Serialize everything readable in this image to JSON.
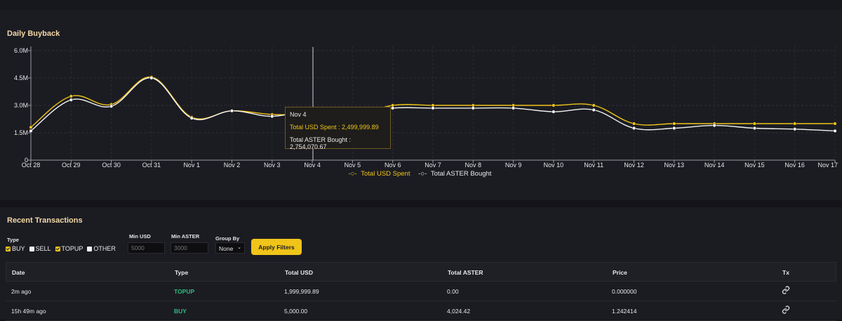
{
  "chart": {
    "title": "Daily Buyback",
    "y_ticks": [
      "0",
      "1.5M",
      "3.0M",
      "4.5M",
      "6.0M"
    ],
    "legend": {
      "usd": "Total USD Spent",
      "aster": "Total ASTER Bought"
    },
    "tooltip": {
      "date": "Nov 4",
      "usd": "Total USD Spent : 2,499,999.89",
      "aster": "Total ASTER Bought : 2,754,070.67"
    }
  },
  "chart_data": {
    "type": "line",
    "title": "Daily Buyback",
    "categories": [
      "Oct 28",
      "Oct 29",
      "Oct 30",
      "Oct 31",
      "Nov 1",
      "Nov 2",
      "Nov 3",
      "Nov 4",
      "Nov 5",
      "Nov 6",
      "Nov 7",
      "Nov 8",
      "Nov 9",
      "Nov 10",
      "Nov 11",
      "Nov 12",
      "Nov 13",
      "Nov 14",
      "Nov 15",
      "Nov 16",
      "Nov 17"
    ],
    "ylim": [
      0,
      6000000
    ],
    "yticks": [
      0,
      1500000,
      3000000,
      4500000,
      6000000
    ],
    "legend_position": "bottom-center",
    "grid": true,
    "series": [
      {
        "name": "Total USD Spent",
        "color": "#f0c419",
        "values": [
          1800000,
          3500000,
          3050000,
          4550000,
          2350000,
          2700000,
          2500000,
          2499999.89,
          2400000,
          3000000,
          3000000,
          3000000,
          3000000,
          3000000,
          3000000,
          2000000,
          2000000,
          2000000,
          2000000,
          2000000,
          2000000
        ]
      },
      {
        "name": "Total ASTER Bought",
        "color": "#f2f2f2",
        "values": [
          1600000,
          3300000,
          2950000,
          4500000,
          2300000,
          2700000,
          2400000,
          2754070.67,
          2500000,
          2850000,
          2850000,
          2850000,
          2850000,
          2650000,
          2750000,
          1750000,
          1750000,
          1900000,
          1750000,
          1700000,
          1600000
        ]
      }
    ]
  },
  "transactions": {
    "title": "Recent Transactions",
    "filters": {
      "type_label": "Type",
      "types": [
        {
          "label": "BUY",
          "checked": true
        },
        {
          "label": "SELL",
          "checked": false
        },
        {
          "label": "TOPUP",
          "checked": true
        },
        {
          "label": "OTHER",
          "checked": false
        }
      ],
      "min_usd_label": "Min USD",
      "min_usd_placeholder": "5000",
      "min_aster_label": "Min ASTER",
      "min_aster_placeholder": "3000",
      "group_by_label": "Group By",
      "group_by_value": "None",
      "apply_label": "Apply Filters"
    },
    "columns": [
      "Date",
      "Type",
      "Total USD",
      "Total ASTER",
      "Price",
      "Tx"
    ],
    "rows": [
      {
        "date": "2m ago",
        "type": "TOPUP",
        "usd": "1,999,999.89",
        "aster": "0.00",
        "price": "0.000000"
      },
      {
        "date": "15h 49m ago",
        "type": "BUY",
        "usd": "5,000.00",
        "aster": "4,024.42",
        "price": "1.242414"
      }
    ]
  }
}
